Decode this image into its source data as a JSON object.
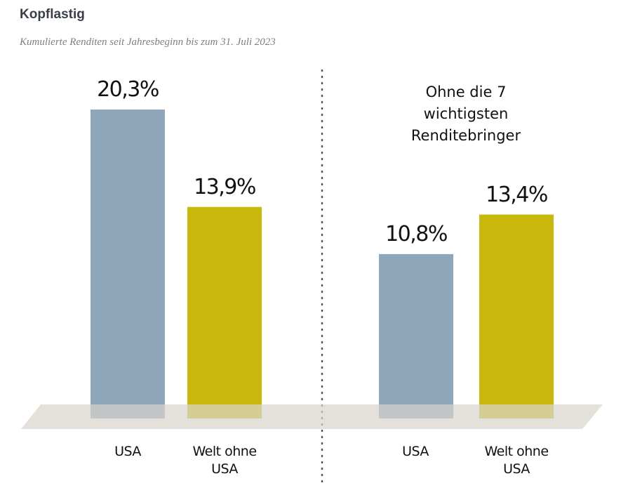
{
  "header": {
    "title": "Kopflastig",
    "subtitle": "Kumulierte Renditen seit Jahresbeginn bis zum 31. Juli 2023"
  },
  "chart_data": {
    "type": "bar",
    "ylim": [
      0,
      22
    ],
    "grid": false,
    "panels": [
      {
        "annotation": "",
        "categories": [
          "USA",
          "Welt ohne USA"
        ],
        "values": [
          20.3,
          13.9
        ],
        "value_labels": [
          "20,3%",
          "13,9%"
        ],
        "colors": [
          "#8fa6bb",
          "#c8b90c"
        ]
      },
      {
        "annotation": "Ohne die 7 wichtigsten Renditebringer",
        "categories": [
          "USA",
          "Welt ohne USA"
        ],
        "values": [
          10.8,
          13.4
        ],
        "value_labels": [
          "10,8%",
          "13,4%"
        ],
        "colors": [
          "#8fa6bb",
          "#c8b90c"
        ]
      }
    ]
  },
  "labels": {
    "left_usa": "USA",
    "left_world_1": "Welt ohne",
    "left_world_2": "USA",
    "right_usa": "USA",
    "right_world_1": "Welt ohne",
    "right_world_2": "USA"
  }
}
